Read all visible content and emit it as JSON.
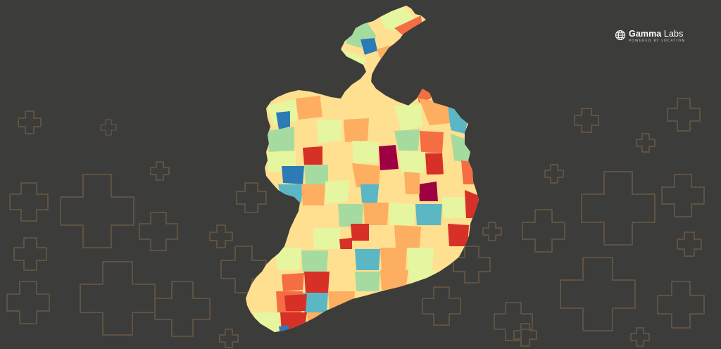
{
  "brand": {
    "name_bold": "Gamma",
    "name_light": " Labs",
    "tagline": "POWERED BY LOCATION",
    "icon": "globe-icon",
    "text_color": "#ffffff"
  },
  "background": {
    "color": "#3c3c3a",
    "pattern": "plus-outline-icons",
    "pattern_color": "#5f5242"
  },
  "map": {
    "subject": "Ireland",
    "style": "choropleth",
    "palette": [
      "#2c7bb6",
      "#5bb7c4",
      "#a6dba0",
      "#e6f5a0",
      "#fee090",
      "#fdae61",
      "#f46d43",
      "#d73027",
      "#9e0142"
    ]
  }
}
